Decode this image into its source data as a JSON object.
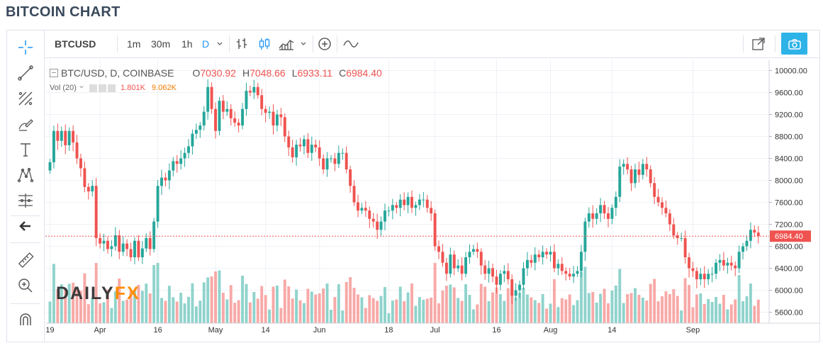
{
  "page": {
    "title": "BITCOIN CHART"
  },
  "toolbar": {
    "symbol": "BTCUSD",
    "intervals": [
      "1m",
      "30m",
      "1h",
      "D"
    ],
    "active_interval": "D",
    "accent": "#2196f3",
    "camera_color": "#2eb3e8"
  },
  "legend": {
    "title": "BTC/USD, D, COINBASE",
    "o_label": "O",
    "o_value": "7030.92",
    "h_label": "H",
    "h_value": "7048.66",
    "l_label": "L",
    "l_value": "6933.11",
    "c_label": "C",
    "c_value": "6984.40"
  },
  "volume_legend": {
    "label": "Vol (20)",
    "value1": "1.801K",
    "value2": "9.062K"
  },
  "watermark": {
    "part1": "DAILY",
    "part2": "FX"
  },
  "colors": {
    "up": "#26a69a",
    "down": "#ef5350",
    "up_vol": "#8fd3cc",
    "down_vol": "#f7a9a7",
    "last_price": "#ef5350"
  },
  "left_tools": [
    "crosshair-icon",
    "trend-line-icon",
    "pitchfork-icon",
    "brush-icon",
    "text-icon",
    "pattern-icon",
    "measure-icon",
    "back-arrow-icon",
    "ruler-icon",
    "zoom-in-icon",
    "magnet-icon"
  ],
  "chart_data": {
    "type": "candlestick",
    "title": "BTC/USD, D, COINBASE",
    "symbol": "BTCUSD",
    "ylim": [
      5400,
      10200
    ],
    "y_ticks": [
      "10000.00",
      "9600.00",
      "9200.00",
      "8800.00",
      "8400.00",
      "8000.00",
      "7600.00",
      "7200.00",
      "6800.00",
      "6400.00",
      "6000.00",
      "5600.00"
    ],
    "y_tick_values": [
      10000,
      9600,
      9200,
      8800,
      8400,
      8000,
      7600,
      7200,
      6800,
      6400,
      6000,
      5600
    ],
    "x_labels": [
      "19",
      "Apr",
      "16",
      "May",
      "14",
      "Jun",
      "18",
      "Jul",
      "16",
      "Aug",
      "14",
      "Sep"
    ],
    "x_label_days": [
      0,
      13,
      28,
      43,
      56,
      70,
      88,
      100,
      116,
      130,
      146,
      167
    ],
    "last_price": 6984.4,
    "last_price_label": "6984.40",
    "closes": [
      8330,
      8900,
      8720,
      8900,
      8640,
      8900,
      8690,
      8400,
      8220,
      7880,
      7800,
      7900,
      6950,
      6850,
      6900,
      6750,
      6800,
      7000,
      6700,
      6850,
      6750,
      6600,
      6900,
      6600,
      6760,
      6950,
      6750,
      7250,
      7900,
      8050,
      8000,
      8180,
      8350,
      8300,
      8400,
      8500,
      8620,
      8850,
      8920,
      9000,
      9250,
      9700,
      9300,
      8900,
      9450,
      9250,
      9300,
      9130,
      9050,
      9000,
      9300,
      9630,
      9600,
      9700,
      9550,
      9300,
      9230,
      9250,
      9000,
      9200,
      9150,
      8800,
      8600,
      8420,
      8650,
      8620,
      8750,
      8500,
      8650,
      8600,
      8400,
      8200,
      8400,
      8400,
      8300,
      8500,
      8500,
      8200,
      7900,
      7600,
      7450,
      7500,
      7450,
      7300,
      7250,
      7100,
      7250,
      7450,
      7450,
      7550,
      7500,
      7650,
      7550,
      7700,
      7500,
      7550,
      7650,
      7650,
      7500,
      7400,
      6800,
      6700,
      6500,
      6300,
      6650,
      6400,
      6450,
      6300,
      6600,
      6700,
      6750,
      6700,
      6450,
      6300,
      6400,
      6250,
      6100,
      6300,
      6350,
      6200,
      5900,
      6000,
      6100,
      6400,
      6550,
      6500,
      6650,
      6600,
      6700,
      6650,
      6700,
      6400,
      6480,
      6350,
      6300,
      6250,
      6300,
      6350,
      6700,
      7250,
      7400,
      7300,
      7400,
      7550,
      7400,
      7300,
      7500,
      7700,
      8250,
      8300,
      8200,
      7950,
      8200,
      8100,
      8300,
      8200,
      7950,
      7700,
      7600,
      7500,
      7400,
      7200,
      7000,
      6950,
      6950,
      6600,
      6400,
      6350,
      6200,
      6300,
      6200,
      6300,
      6300,
      6500,
      6550,
      6450,
      6500,
      6450,
      6400,
      6700,
      6800,
      6900,
      7100,
      7050,
      6984
    ]
  }
}
